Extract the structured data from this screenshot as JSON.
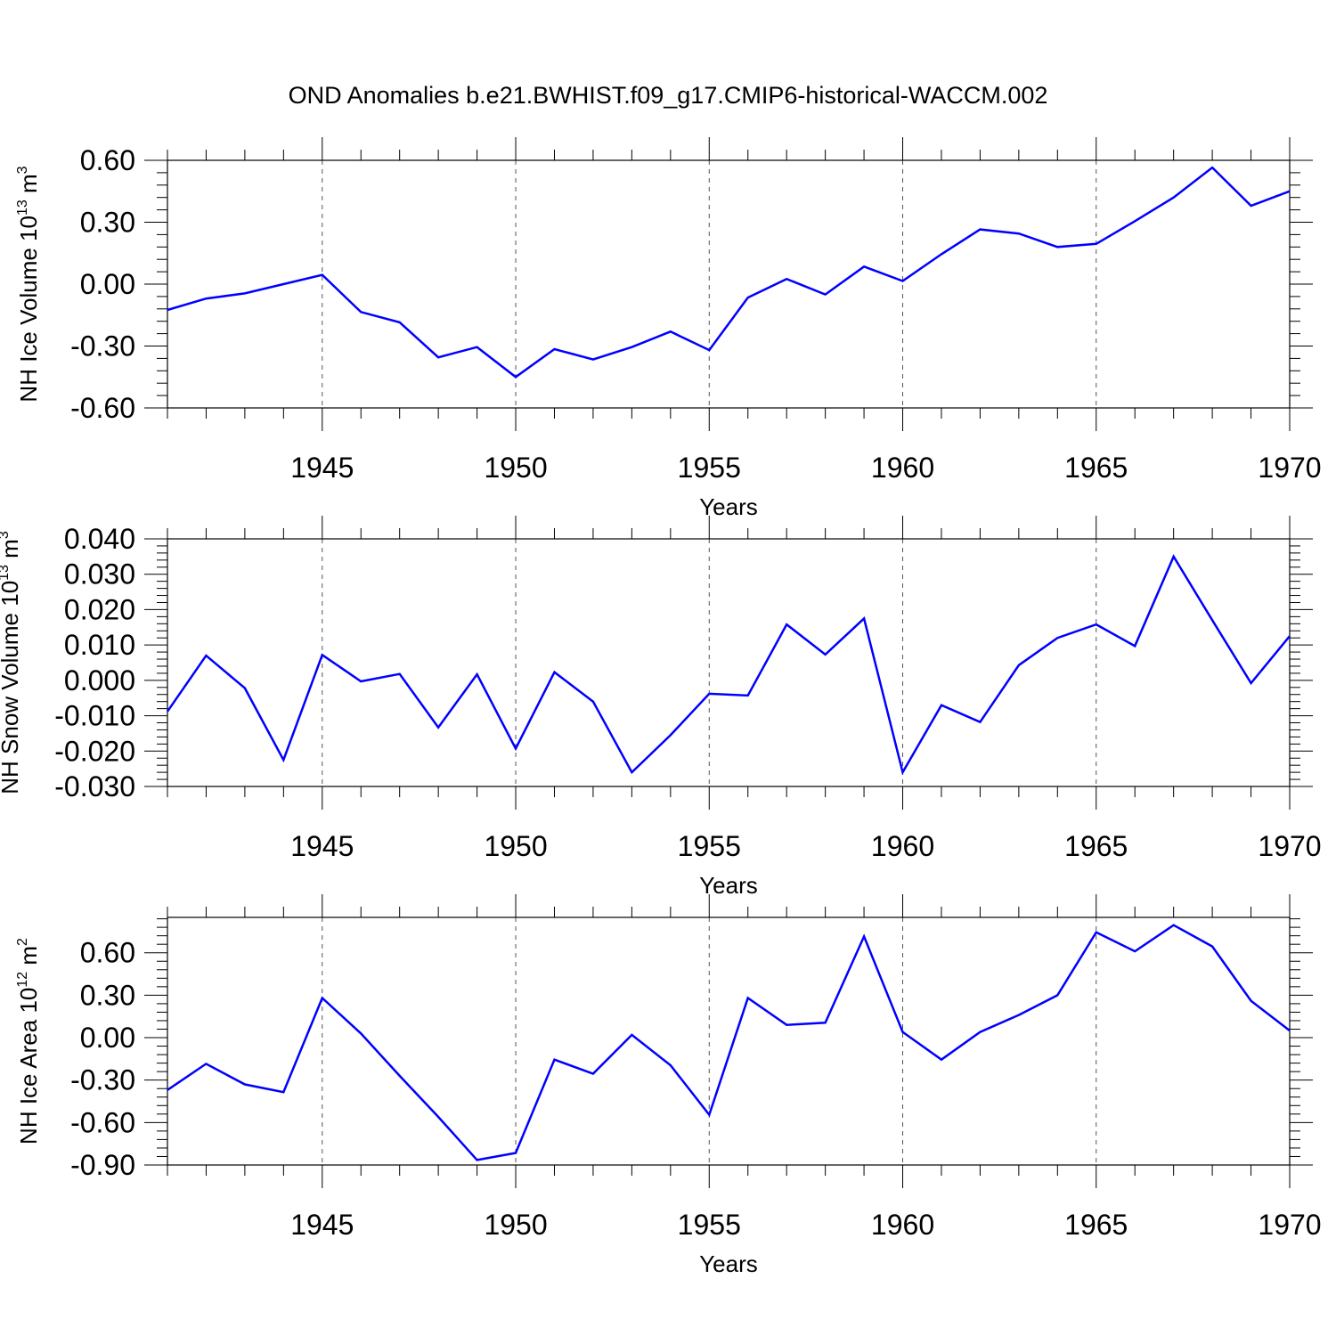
{
  "figure": {
    "title": "OND Anomalies b.e21.BWHIST.f09_g17.CMIP6-historical-WACCM.002"
  },
  "chart_data": [
    {
      "type": "line",
      "title": "OND Anomalies b.e21.BWHIST.f09_g17.CMIP6-historical-WACCM.002",
      "xlabel": "Years",
      "ylabel": "NH Ice Volume 10",
      "ylabel_sup": "13",
      "ylabel_unit": "m",
      "ylabel_unit_sup": "3",
      "xlim": [
        1941,
        1970
      ],
      "ylim": [
        -0.6,
        0.6
      ],
      "xticks": [
        1945,
        1950,
        1955,
        1960,
        1965,
        1970
      ],
      "xtick_labels": [
        "1945",
        "1950",
        "1955",
        "1960",
        "1965",
        "1970"
      ],
      "yticks": [
        -0.6,
        -0.3,
        0.0,
        0.3,
        0.6
      ],
      "ytick_labels": [
        "-0.60",
        "-0.30",
        "0.00",
        "0.30",
        "0.60"
      ],
      "grid": "vertical dashed at major x ticks",
      "line_color": "#0000ff",
      "x": [
        1941,
        1942,
        1943,
        1944,
        1945,
        1946,
        1947,
        1948,
        1949,
        1950,
        1951,
        1952,
        1953,
        1954,
        1955,
        1956,
        1957,
        1958,
        1959,
        1960,
        1961,
        1962,
        1963,
        1964,
        1965,
        1966,
        1967,
        1968,
        1969,
        1970
      ],
      "values": [
        -0.125,
        -0.07,
        -0.045,
        0.0,
        0.045,
        -0.135,
        -0.185,
        -0.355,
        -0.305,
        -0.45,
        -0.315,
        -0.365,
        -0.305,
        -0.23,
        -0.32,
        -0.065,
        0.025,
        -0.05,
        0.085,
        0.015,
        0.145,
        0.265,
        0.245,
        0.18,
        0.195,
        0.305,
        0.42,
        0.565,
        0.38,
        0.45
      ]
    },
    {
      "type": "line",
      "xlabel": "Years",
      "ylabel": "NH Snow Volume 10",
      "ylabel_sup": "13",
      "ylabel_unit": "m",
      "ylabel_unit_sup": "3",
      "xlim": [
        1941,
        1970
      ],
      "ylim": [
        -0.03,
        0.04
      ],
      "xticks": [
        1945,
        1950,
        1955,
        1960,
        1965,
        1970
      ],
      "xtick_labels": [
        "1945",
        "1950",
        "1955",
        "1960",
        "1965",
        "1970"
      ],
      "yticks": [
        -0.03,
        -0.02,
        -0.01,
        0.0,
        0.01,
        0.02,
        0.03,
        0.04
      ],
      "ytick_labels": [
        "-0.030",
        "-0.020",
        "-0.010",
        "0.000",
        "0.010",
        "0.020",
        "0.030",
        "0.040"
      ],
      "grid": "vertical dashed at major x ticks",
      "line_color": "#0000ff",
      "x": [
        1941,
        1942,
        1943,
        1944,
        1945,
        1946,
        1947,
        1948,
        1949,
        1950,
        1951,
        1952,
        1953,
        1954,
        1955,
        1956,
        1957,
        1958,
        1959,
        1960,
        1961,
        1962,
        1963,
        1964,
        1965,
        1966,
        1967,
        1968,
        1969,
        1970
      ],
      "values": [
        -0.0088,
        0.007,
        -0.0022,
        -0.0225,
        0.0072,
        -0.0003,
        0.0018,
        -0.0133,
        0.0017,
        -0.0193,
        0.0023,
        -0.006,
        -0.026,
        -0.0155,
        -0.0038,
        -0.0043,
        0.0158,
        0.0073,
        0.0175,
        -0.026,
        -0.007,
        -0.0118,
        0.0043,
        0.012,
        0.0158,
        0.0097,
        0.035,
        0.017,
        -0.0008,
        0.0125
      ]
    },
    {
      "type": "line",
      "xlabel": "Years",
      "ylabel": "NH Ice Area 10",
      "ylabel_sup": "12",
      "ylabel_unit": "m",
      "ylabel_unit_sup": "2",
      "xlim": [
        1941,
        1970
      ],
      "ylim": [
        -0.9,
        0.85
      ],
      "xticks": [
        1945,
        1950,
        1955,
        1960,
        1965,
        1970
      ],
      "xtick_labels": [
        "1945",
        "1950",
        "1955",
        "1960",
        "1965",
        "1970"
      ],
      "yticks": [
        -0.9,
        -0.6,
        -0.3,
        0.0,
        0.3,
        0.6
      ],
      "ytick_labels": [
        "-0.90",
        "-0.60",
        "-0.30",
        "0.00",
        "0.30",
        "0.60"
      ],
      "grid": "vertical dashed at major x ticks",
      "line_color": "#0000ff",
      "x": [
        1941,
        1942,
        1943,
        1944,
        1945,
        1946,
        1947,
        1948,
        1949,
        1950,
        1951,
        1952,
        1953,
        1954,
        1955,
        1956,
        1957,
        1958,
        1959,
        1960,
        1961,
        1962,
        1963,
        1964,
        1965,
        1966,
        1967,
        1968,
        1969,
        1970
      ],
      "values": [
        -0.37,
        -0.185,
        -0.33,
        -0.385,
        0.28,
        0.03,
        -0.27,
        -0.56,
        -0.865,
        -0.815,
        -0.155,
        -0.255,
        0.02,
        -0.195,
        -0.545,
        0.28,
        0.09,
        0.105,
        0.715,
        0.04,
        -0.155,
        0.04,
        0.16,
        0.3,
        0.745,
        0.61,
        0.795,
        0.645,
        0.26,
        0.05
      ]
    }
  ]
}
